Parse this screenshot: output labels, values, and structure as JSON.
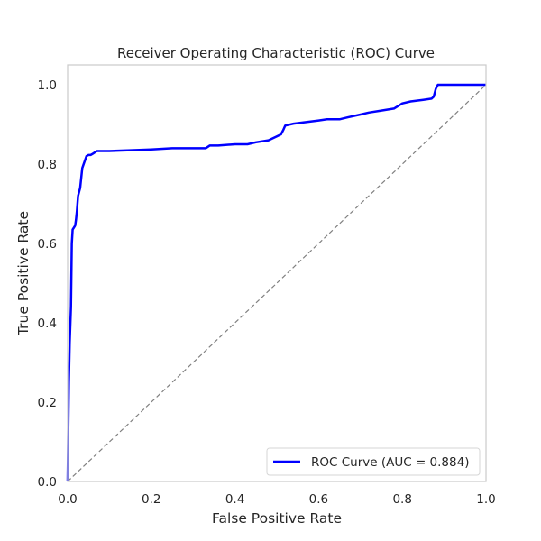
{
  "chart_data": {
    "type": "line",
    "title": "Receiver Operating Characteristic (ROC) Curve",
    "xlabel": "False Positive Rate",
    "ylabel": "True Positive Rate",
    "xlim": [
      0.0,
      1.0
    ],
    "ylim": [
      0.0,
      1.05
    ],
    "grid": false,
    "legend_position": "lower right",
    "x_ticks": [
      "0.0",
      "0.2",
      "0.4",
      "0.6",
      "0.8",
      "1.0"
    ],
    "y_ticks": [
      "0.0",
      "0.2",
      "0.4",
      "0.6",
      "0.8",
      "1.0"
    ],
    "series": [
      {
        "name": "ROC Curve (AUC = 0.884)",
        "color": "#0000ff",
        "style": "solid",
        "x": [
          0.0,
          0.003,
          0.005,
          0.008,
          0.01,
          0.012,
          0.015,
          0.018,
          0.02,
          0.022,
          0.025,
          0.03,
          0.035,
          0.04,
          0.045,
          0.05,
          0.055,
          0.06,
          0.07,
          0.1,
          0.15,
          0.2,
          0.25,
          0.3,
          0.33,
          0.34,
          0.36,
          0.4,
          0.43,
          0.45,
          0.48,
          0.5,
          0.51,
          0.515,
          0.52,
          0.54,
          0.57,
          0.6,
          0.62,
          0.65,
          0.67,
          0.7,
          0.72,
          0.75,
          0.78,
          0.8,
          0.82,
          0.85,
          0.87,
          0.875,
          0.88,
          0.885,
          0.89,
          0.9,
          0.95,
          1.0
        ],
        "y": [
          0.0,
          0.25,
          0.35,
          0.44,
          0.6,
          0.635,
          0.64,
          0.645,
          0.66,
          0.68,
          0.72,
          0.74,
          0.79,
          0.805,
          0.82,
          0.823,
          0.823,
          0.826,
          0.833,
          0.833,
          0.835,
          0.837,
          0.84,
          0.84,
          0.84,
          0.847,
          0.847,
          0.85,
          0.85,
          0.855,
          0.86,
          0.87,
          0.875,
          0.885,
          0.897,
          0.902,
          0.906,
          0.91,
          0.913,
          0.913,
          0.918,
          0.925,
          0.93,
          0.935,
          0.94,
          0.953,
          0.958,
          0.962,
          0.965,
          0.97,
          0.99,
          1.0,
          1.0,
          1.0,
          1.0,
          1.0
        ]
      },
      {
        "name": "",
        "color": "#808080",
        "style": "dashed",
        "x": [
          0.0,
          1.0
        ],
        "y": [
          0.0,
          1.0
        ]
      }
    ]
  }
}
